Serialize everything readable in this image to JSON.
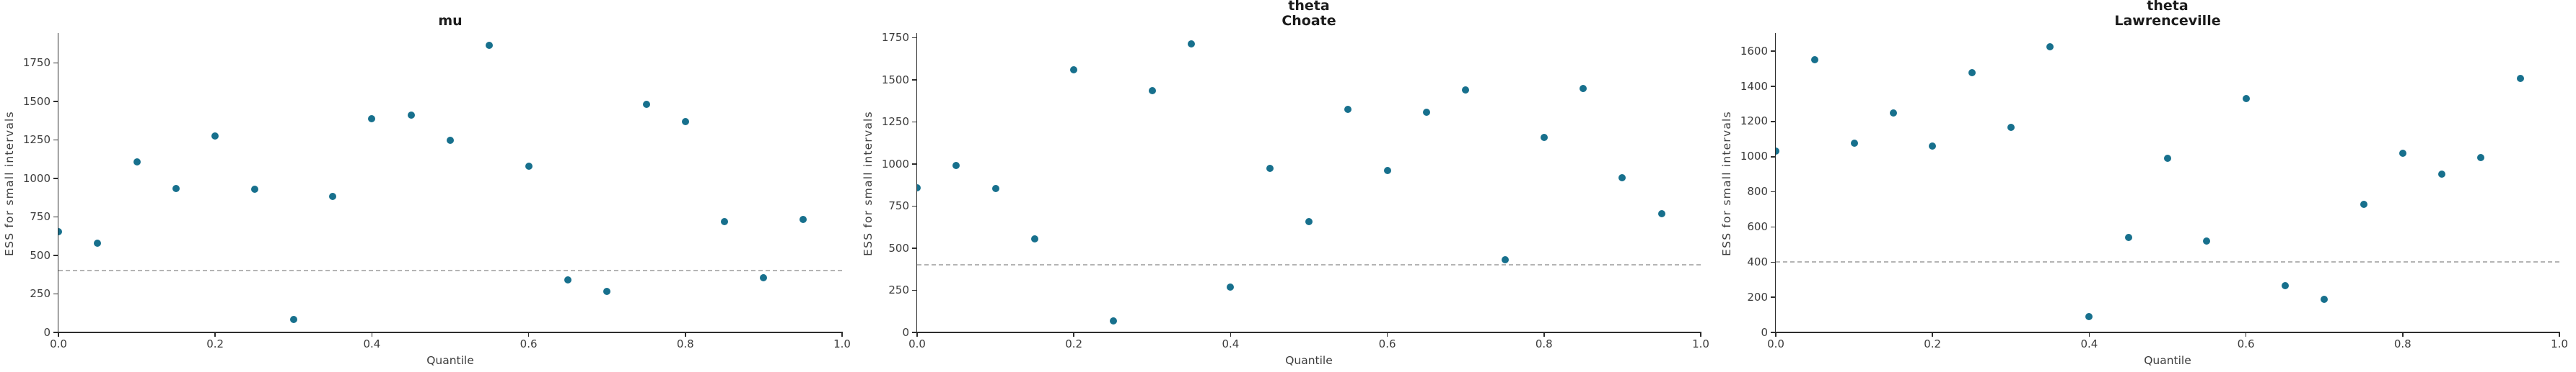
{
  "style": {
    "background": "#ffffff",
    "point_color": "#17708d",
    "reference_line_color": "#b4b4b4",
    "spine_color": "#2e2e2e",
    "tick_label_color": "#3c3c3c",
    "title_color": "#1c1c1c"
  },
  "chart_data": [
    {
      "type": "scatter",
      "title": "mu",
      "xlabel": "Quantile",
      "ylabel": "ESS for small intervals",
      "xlim": [
        0.0,
        1.0
      ],
      "ylim": [
        0,
        1935
      ],
      "xticks": [
        "0.0",
        "0.2",
        "0.4",
        "0.6",
        "0.8",
        "1.0"
      ],
      "yticks": [
        0,
        250,
        500,
        750,
        1000,
        1250,
        1500,
        1750
      ],
      "min_ess_reference": 400,
      "grid": false,
      "legend": false,
      "x": [
        0.0,
        0.05,
        0.1,
        0.15,
        0.2,
        0.25,
        0.3,
        0.35,
        0.4,
        0.45,
        0.5,
        0.55,
        0.6,
        0.65,
        0.7,
        0.75,
        0.8,
        0.85,
        0.9,
        0.95
      ],
      "y": [
        655,
        580,
        1110,
        935,
        1275,
        930,
        85,
        885,
        1390,
        1410,
        1250,
        1865,
        1080,
        340,
        265,
        1480,
        1370,
        720,
        355,
        735
      ]
    },
    {
      "type": "scatter",
      "title": "theta\nChoate",
      "xlabel": "Quantile",
      "ylabel": "ESS for small intervals",
      "xlim": [
        0.0,
        1.0
      ],
      "ylim": [
        0,
        1770
      ],
      "xticks": [
        "0.0",
        "0.2",
        "0.4",
        "0.6",
        "0.8",
        "1.0"
      ],
      "yticks": [
        0,
        250,
        500,
        750,
        1000,
        1250,
        1500,
        1750
      ],
      "min_ess_reference": 400,
      "grid": false,
      "legend": false,
      "x": [
        0.0,
        0.05,
        0.1,
        0.15,
        0.2,
        0.25,
        0.3,
        0.35,
        0.4,
        0.45,
        0.5,
        0.55,
        0.6,
        0.65,
        0.7,
        0.75,
        0.8,
        0.85,
        0.9,
        0.95
      ],
      "y": [
        860,
        990,
        855,
        555,
        1560,
        70,
        1435,
        1715,
        270,
        975,
        660,
        1325,
        960,
        1310,
        1440,
        430,
        1160,
        1450,
        920,
        705
      ]
    },
    {
      "type": "scatter",
      "title": "theta\nLawrenceville",
      "xlabel": "Quantile",
      "ylabel": "ESS for small intervals",
      "xlim": [
        0.0,
        1.0
      ],
      "ylim": [
        0,
        1695
      ],
      "xticks": [
        "0.0",
        "0.2",
        "0.4",
        "0.6",
        "0.8",
        "1.0"
      ],
      "yticks": [
        0,
        200,
        400,
        600,
        800,
        1000,
        1200,
        1400,
        1600
      ],
      "min_ess_reference": 400,
      "grid": false,
      "legend": false,
      "x": [
        0.0,
        0.05,
        0.1,
        0.15,
        0.2,
        0.25,
        0.3,
        0.35,
        0.4,
        0.45,
        0.5,
        0.55,
        0.6,
        0.65,
        0.7,
        0.75,
        0.8,
        0.85,
        0.9,
        0.95
      ],
      "y": [
        1030,
        1550,
        1075,
        1250,
        1060,
        1480,
        1165,
        1625,
        90,
        540,
        990,
        520,
        1330,
        265,
        190,
        730,
        1020,
        900,
        995,
        1445
      ]
    }
  ]
}
